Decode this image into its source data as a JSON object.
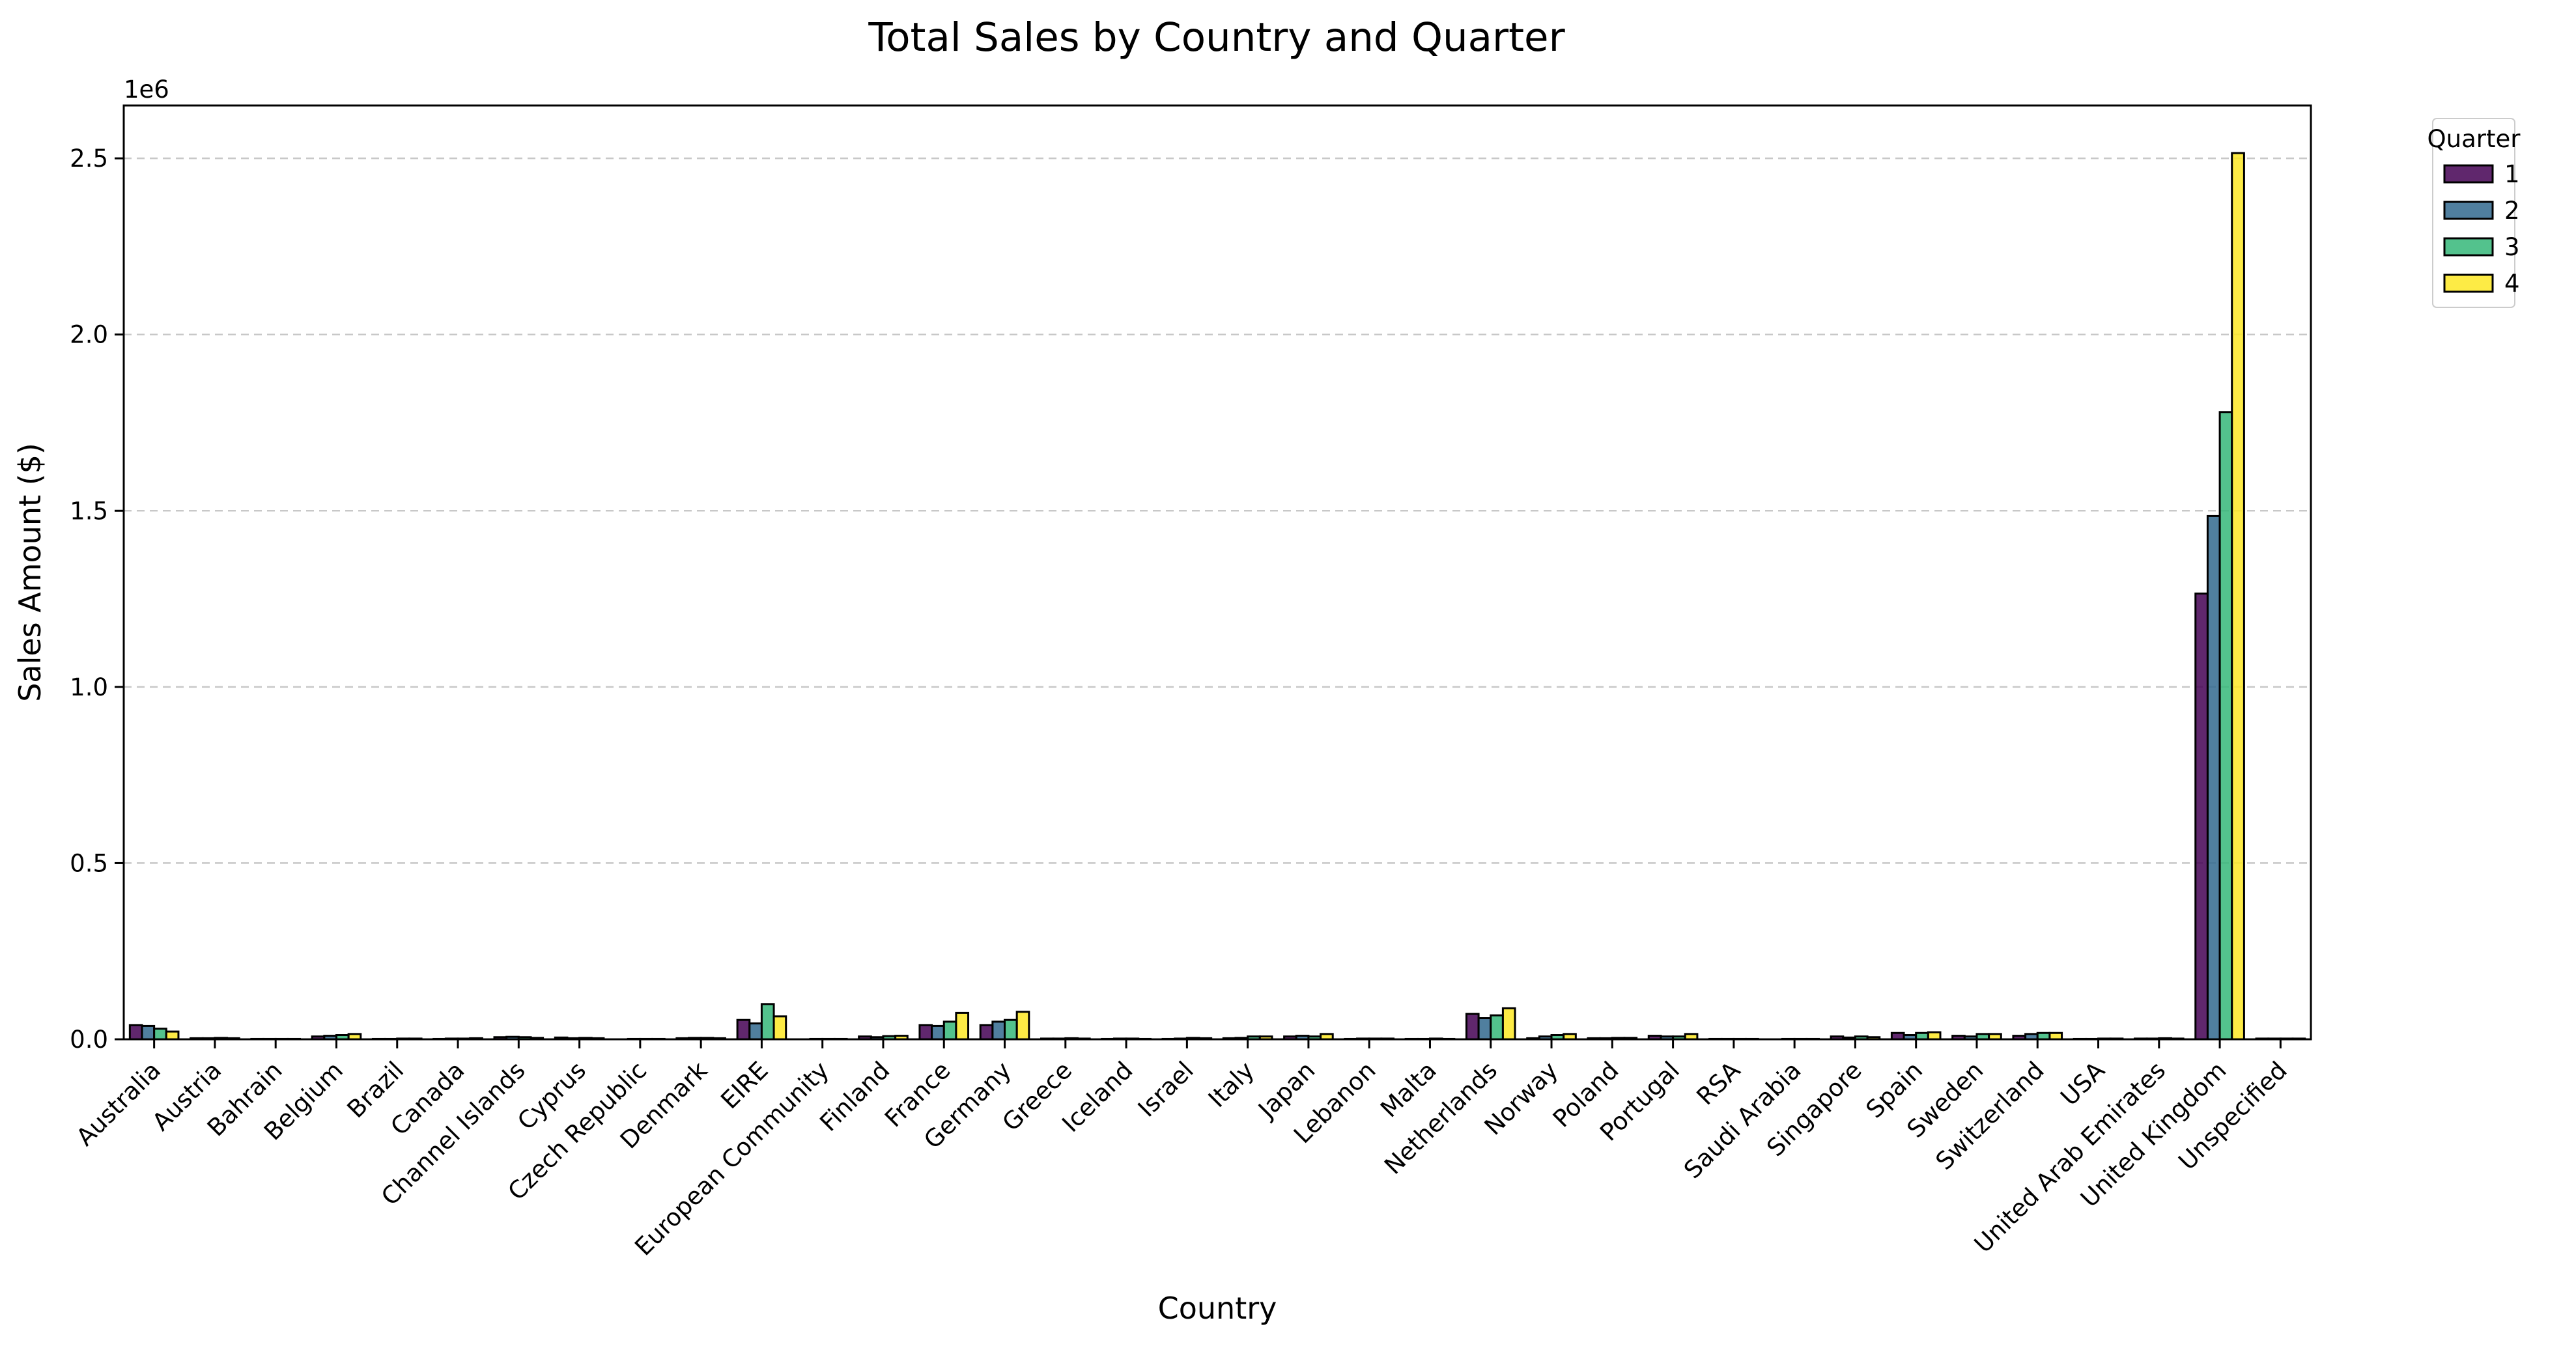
{
  "chart_data": {
    "type": "bar",
    "title": "Total Sales by Country and Quarter",
    "xlabel": "Country",
    "ylabel": "Sales Amount ($)",
    "y_offset_label": "1e6",
    "ylim": [
      0,
      2.65
    ],
    "yticks": [
      0.0,
      0.5,
      1.0,
      1.5,
      2.0,
      2.5
    ],
    "ytick_labels": [
      "0.0",
      "0.5",
      "1.0",
      "1.5",
      "2.0",
      "2.5"
    ],
    "grid": "y-dashed",
    "legend": {
      "title": "Quarter",
      "placement": "outside-top-right"
    },
    "categories": [
      "Australia",
      "Austria",
      "Bahrain",
      "Belgium",
      "Brazil",
      "Canada",
      "Channel Islands",
      "Cyprus",
      "Czech Republic",
      "Denmark",
      "EIRE",
      "European Community",
      "Finland",
      "France",
      "Germany",
      "Greece",
      "Iceland",
      "Israel",
      "Italy",
      "Japan",
      "Lebanon",
      "Malta",
      "Netherlands",
      "Norway",
      "Poland",
      "Portugal",
      "RSA",
      "Saudi Arabia",
      "Singapore",
      "Spain",
      "Sweden",
      "Switzerland",
      "USA",
      "United Arab Emirates",
      "United Kingdom",
      "Unspecified"
    ],
    "series": [
      {
        "name": "1",
        "color": "#440154",
        "values": [
          0.04,
          0.003,
          0.001,
          0.008,
          0.001,
          0.001,
          0.006,
          0.005,
          0.0,
          0.003,
          0.055,
          0.0,
          0.008,
          0.04,
          0.04,
          0.002,
          0.001,
          0.001,
          0.003,
          0.008,
          0.001,
          0.001,
          0.072,
          0.003,
          0.003,
          0.01,
          0.001,
          0.0,
          0.008,
          0.018,
          0.01,
          0.01,
          0.001,
          0.002,
          1.265,
          0.002
        ]
      },
      {
        "name": "2",
        "color": "#31688e",
        "values": [
          0.038,
          0.003,
          0.001,
          0.01,
          0.001,
          0.002,
          0.007,
          0.003,
          0.001,
          0.004,
          0.045,
          0.001,
          0.006,
          0.038,
          0.05,
          0.002,
          0.002,
          0.002,
          0.004,
          0.01,
          0.002,
          0.001,
          0.06,
          0.008,
          0.003,
          0.008,
          0.001,
          0.001,
          0.005,
          0.012,
          0.008,
          0.015,
          0.001,
          0.002,
          1.485,
          0.002
        ]
      },
      {
        "name": "3",
        "color": "#35b779",
        "values": [
          0.03,
          0.004,
          0.001,
          0.012,
          0.002,
          0.002,
          0.006,
          0.004,
          0.001,
          0.004,
          0.1,
          0.001,
          0.009,
          0.05,
          0.055,
          0.003,
          0.002,
          0.004,
          0.008,
          0.008,
          0.002,
          0.002,
          0.068,
          0.012,
          0.004,
          0.008,
          0.001,
          0.001,
          0.008,
          0.018,
          0.015,
          0.018,
          0.002,
          0.003,
          1.78,
          0.002
        ]
      },
      {
        "name": "4",
        "color": "#fde725",
        "values": [
          0.022,
          0.003,
          0.001,
          0.015,
          0.002,
          0.003,
          0.004,
          0.003,
          0.001,
          0.003,
          0.065,
          0.001,
          0.01,
          0.075,
          0.078,
          0.002,
          0.001,
          0.003,
          0.008,
          0.015,
          0.002,
          0.001,
          0.088,
          0.015,
          0.004,
          0.015,
          0.001,
          0.001,
          0.006,
          0.02,
          0.015,
          0.018,
          0.002,
          0.002,
          2.515,
          0.002
        ]
      }
    ]
  }
}
